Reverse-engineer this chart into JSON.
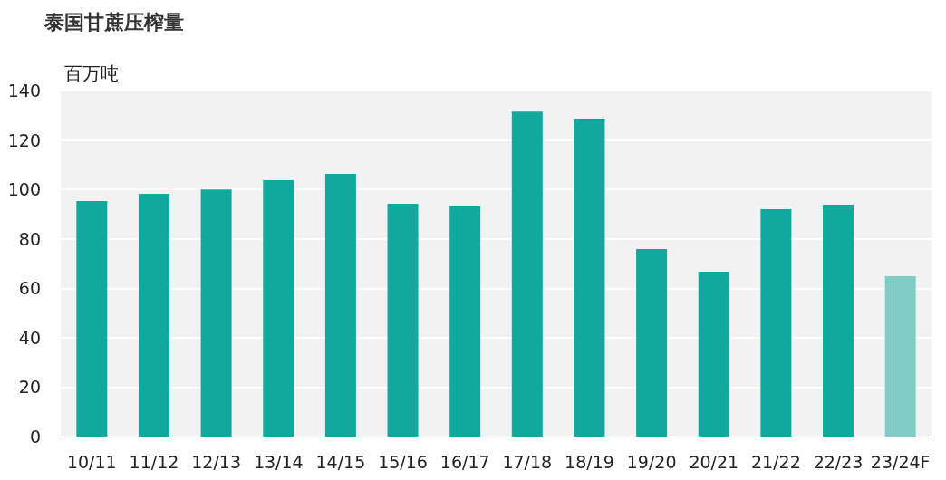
{
  "chart_data": {
    "type": "bar",
    "title": "泰国甘蔗压榨量",
    "ylabel": "百万吨",
    "categories": [
      "10/11",
      "11/12",
      "12/13",
      "13/14",
      "14/15",
      "15/16",
      "16/17",
      "17/18",
      "18/19",
      "19/20",
      "20/21",
      "21/22",
      "22/23",
      "23/24F"
    ],
    "values": [
      95.3,
      98.2,
      100,
      103.7,
      106.3,
      94.2,
      93.1,
      131.5,
      128.6,
      75.9,
      66.7,
      92,
      93.8,
      64.9
    ],
    "colors": [
      "#13a89e",
      "#13a89e",
      "#13a89e",
      "#13a89e",
      "#13a89e",
      "#13a89e",
      "#13a89e",
      "#13a89e",
      "#13a89e",
      "#13a89e",
      "#13a89e",
      "#13a89e",
      "#13a89e",
      "#80ccc7"
    ],
    "ylim": [
      0,
      140
    ],
    "yticks": [
      0,
      20,
      40,
      60,
      80,
      100,
      120,
      140
    ],
    "grid": "y"
  }
}
